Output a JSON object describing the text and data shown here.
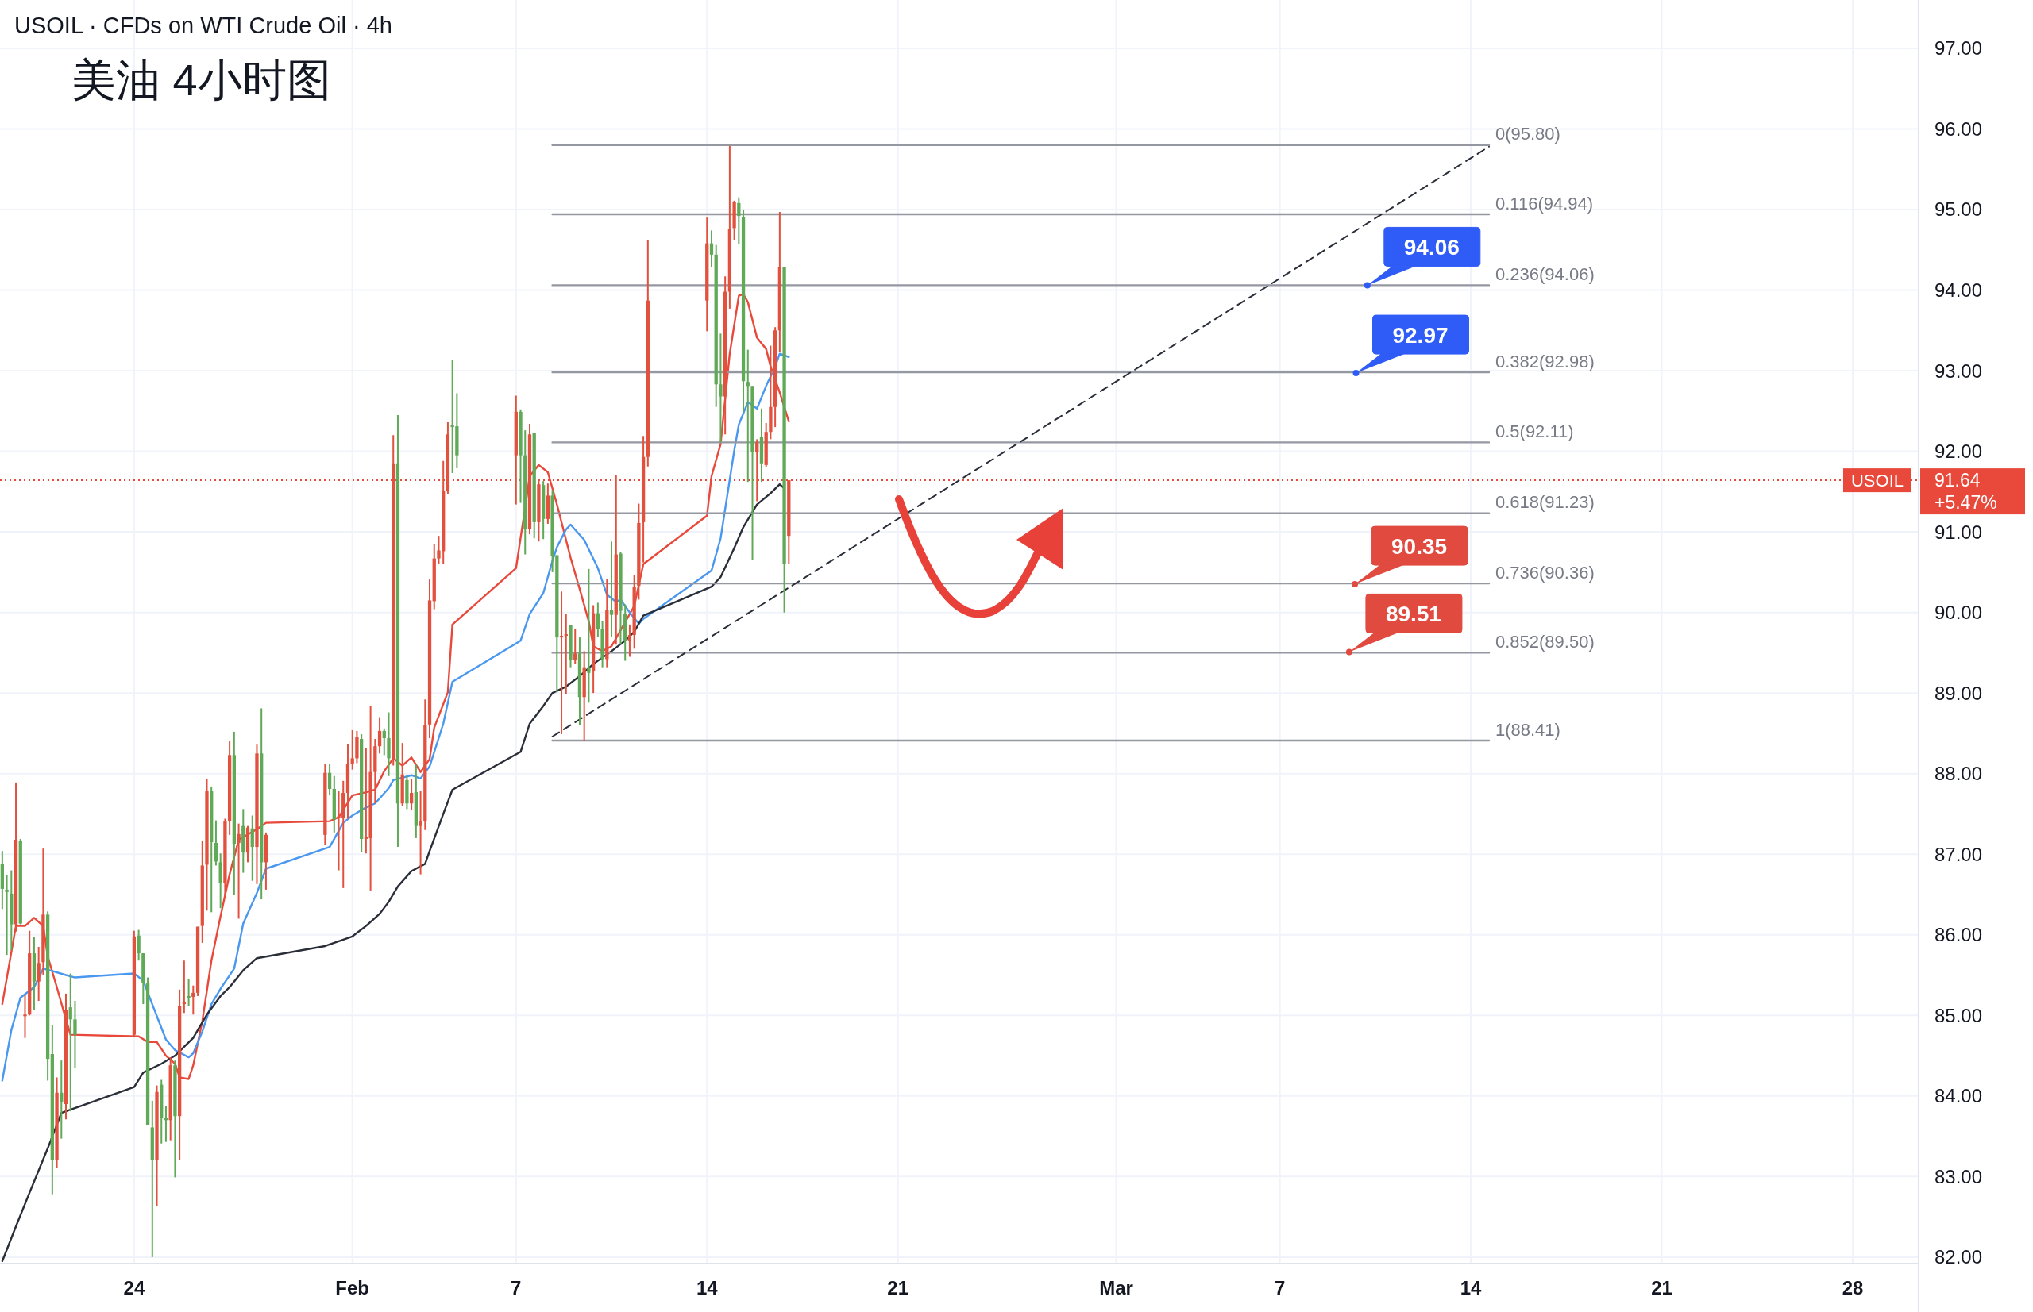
{
  "chart_data": {
    "type": "candlestick",
    "title": "USOIL · CFDs on WTI Crude Oil · 4h",
    "subtitle": "美油 4小时图",
    "xlim": [
      "--01-19T02:00",
      "--03-30T10:00"
    ],
    "ylim": [
      81.92,
      97.6
    ],
    "xticks": [
      {
        "value": "--01-24",
        "label": "24"
      },
      {
        "value": "--02-01",
        "label": "Feb"
      },
      {
        "value": "--02-07",
        "label": "7"
      },
      {
        "value": "--02-14",
        "label": "14"
      },
      {
        "value": "--02-21",
        "label": "21"
      },
      {
        "value": "--03-01",
        "label": "Mar"
      },
      {
        "value": "--03-07",
        "label": "7"
      },
      {
        "value": "--03-14",
        "label": "14"
      },
      {
        "value": "--03-21",
        "label": "21"
      },
      {
        "value": "--03-28",
        "label": "28"
      }
    ],
    "yticks": [
      {
        "value": 82,
        "label": "82.00"
      },
      {
        "value": 83,
        "label": "83.00"
      },
      {
        "value": 84,
        "label": "84.00"
      },
      {
        "value": 85,
        "label": "85.00"
      },
      {
        "value": 86,
        "label": "86.00"
      },
      {
        "value": 87,
        "label": "87.00"
      },
      {
        "value": 88,
        "label": "88.00"
      },
      {
        "value": 89,
        "label": "89.00"
      },
      {
        "value": 90,
        "label": "90.00"
      },
      {
        "value": 91,
        "label": "91.00"
      },
      {
        "value": 92,
        "label": "92.00"
      },
      {
        "value": 93,
        "label": "93.00"
      },
      {
        "value": 94,
        "label": "94.00"
      },
      {
        "value": 95,
        "label": "95.00"
      },
      {
        "value": 96,
        "label": "96.00"
      },
      {
        "value": 97,
        "label": "97.00"
      }
    ],
    "grid": true,
    "series": [
      {
        "type": "line",
        "color": "#e8493b",
        "x": [
          "--01-19T04:00",
          "--01-19T16:00",
          "--01-20T00:00",
          "--01-20T08:00",
          "--01-20T16:00",
          "--01-20T20:00",
          "--01-21T04:00",
          "--01-21T12:00",
          "--01-21T16:00",
          "--01-24T04:00",
          "--01-24T12:00",
          "--01-24T20:00",
          "--01-25T04:00",
          "--01-25T12:00",
          "--01-25T16:00",
          "--01-26T00:00",
          "--01-26T04:00",
          "--01-26T12:00",
          "--01-26T20:00",
          "--01-27T04:00",
          "--01-27T12:00",
          "--01-27T20:00",
          "--01-28T12:00",
          "--01-28T20:00",
          "--01-31T04:00",
          "--01-31T12:00",
          "--02-01T00:00",
          "--02-01T12:00",
          "--02-01T20:00",
          "--02-02T04:00",
          "--02-02T12:00",
          "--02-02T20:00",
          "--02-03T04:00",
          "--02-03T12:00",
          "--02-03T20:00",
          "--02-04T00:00",
          "--02-04T12:00",
          "--02-04T16:00",
          "--02-07T00:00",
          "--02-07T08:00",
          "--02-07T12:00",
          "--02-07T20:00",
          "--02-08T04:00",
          "--02-08T12:00",
          "--02-08T20:00",
          "--02-09T00:00",
          "--02-09T08:00",
          "--02-09T16:00",
          "--02-09T20:00",
          "--02-10T04:00",
          "--02-10T12:00",
          "--02-11T00:00",
          "--02-11T08:00",
          "--02-11T16:00",
          "--02-14T00:00",
          "--02-14T04:00",
          "--02-14T12:00",
          "--02-14T20:00",
          "--02-15T04:00",
          "--02-15T08:00",
          "--02-15T12:00",
          "--02-15T20:00",
          "--02-16T04:00",
          "--02-16T08:00",
          "--02-16T16:00",
          "--02-17T00:00"
        ],
        "values": [
          85.14,
          86.11,
          86.11,
          86.21,
          86.11,
          85.73,
          85.35,
          84.95,
          84.76,
          84.74,
          84.67,
          84.67,
          84.5,
          84.4,
          84.23,
          84.21,
          84.38,
          84.93,
          85.68,
          86.23,
          86.75,
          87.18,
          87.31,
          87.39,
          87.41,
          87.46,
          87.73,
          87.77,
          87.8,
          88.03,
          88.19,
          88.1,
          88.2,
          88.02,
          88.18,
          88.57,
          89.01,
          89.85,
          90.55,
          91.3,
          91.69,
          91.83,
          91.74,
          91.34,
          90.9,
          90.68,
          90.29,
          89.89,
          89.58,
          89.52,
          89.58,
          89.88,
          90.08,
          90.6,
          91.2,
          91.69,
          92.09,
          93.21,
          93.93,
          93.95,
          93.85,
          93.41,
          93.27,
          93.05,
          92.73,
          92.37
        ]
      },
      {
        "type": "line",
        "color": "#4a97f0",
        "x": [
          "--01-19T04:00",
          "--01-19T12:00",
          "--01-19T20:00",
          "--01-20T08:00",
          "--01-20T16:00",
          "--01-21T00:00",
          "--01-21T12:00",
          "--01-21T20:00",
          "--01-24T00:00",
          "--01-24T08:00",
          "--01-24T20:00",
          "--01-25T04:00",
          "--01-25T12:00",
          "--01-26T00:00",
          "--01-26T04:00",
          "--01-26T12:00",
          "--01-26T20:00",
          "--01-27T04:00",
          "--01-27T16:00",
          "--01-28T00:00",
          "--01-28T12:00",
          "--01-28T20:00",
          "--01-31T04:00",
          "--01-31T16:00",
          "--02-01T00:00",
          "--02-01T12:00",
          "--02-01T20:00",
          "--02-02T08:00",
          "--02-02T12:00",
          "--02-03T04:00",
          "--02-03T12:00",
          "--02-03T20:00",
          "--02-04T08:00",
          "--02-04T16:00",
          "--02-07T04:00",
          "--02-07T12:00",
          "--02-08T00:00",
          "--02-08T08:00",
          "--02-08T12:00",
          "--02-08T20:00",
          "--02-09T00:00",
          "--02-09T12:00",
          "--02-10T00:00",
          "--02-10T08:00",
          "--02-10T16:00",
          "--02-10T20:00",
          "--02-11T04:00",
          "--02-11T12:00",
          "--02-11T16:00",
          "--02-14T04:00",
          "--02-14T12:00",
          "--02-15T00:00",
          "--02-15T04:00",
          "--02-15T12:00",
          "--02-15T20:00",
          "--02-16T04:00",
          "--02-16T12:00",
          "--02-16T16:00",
          "--02-17T00:00"
        ],
        "values": [
          84.19,
          84.82,
          85.22,
          85.35,
          85.58,
          85.55,
          85.5,
          85.47,
          85.52,
          85.43,
          84.99,
          84.7,
          84.57,
          84.48,
          84.53,
          84.8,
          85.14,
          85.33,
          85.58,
          86.14,
          86.52,
          86.82,
          87.09,
          87.39,
          87.48,
          87.58,
          87.63,
          87.82,
          87.92,
          87.98,
          87.94,
          88.09,
          88.62,
          89.14,
          89.65,
          89.98,
          90.24,
          90.64,
          90.81,
          91.03,
          91.09,
          90.9,
          90.55,
          90.22,
          90.13,
          90.16,
          90.0,
          89.86,
          89.92,
          90.52,
          90.92,
          92.01,
          92.33,
          92.61,
          92.53,
          92.81,
          93.05,
          93.21,
          93.17
        ]
      },
      {
        "type": "line",
        "color": "#2a2e39",
        "x": [
          "--01-19T04:00",
          "--01-19T16:00",
          "--01-20T04:00",
          "--01-20T20:00",
          "--01-21T08:00",
          "--01-24T00:00",
          "--01-24T08:00",
          "--01-25T00:00",
          "--01-25T12:00",
          "--01-26T04:00",
          "--01-26T16:00",
          "--01-27T04:00",
          "--01-27T12:00",
          "--01-28T00:00",
          "--01-28T12:00",
          "--01-31T00:00",
          "--01-31T12:00",
          "--02-01T00:00",
          "--02-01T12:00",
          "--02-02T00:00",
          "--02-02T08:00",
          "--02-02T16:00",
          "--02-03T04:00",
          "--02-03T16:00",
          "--02-03T20:00",
          "--02-04T08:00",
          "--02-04T16:00",
          "--02-07T04:00",
          "--02-07T12:00",
          "--02-08T00:00",
          "--02-08T08:00",
          "--02-08T20:00",
          "--02-09T08:00",
          "--02-09T20:00",
          "--02-10T12:00",
          "--02-11T00:00",
          "--02-11T08:00",
          "--02-11T16:00",
          "--02-14T04:00",
          "--02-14T12:00",
          "--02-15T00:00",
          "--02-15T08:00",
          "--02-15T20:00",
          "--02-16T08:00",
          "--02-16T16:00",
          "--02-16T20:00"
        ],
        "values": [
          81.95,
          82.38,
          82.8,
          83.35,
          83.79,
          84.11,
          84.29,
          84.4,
          84.5,
          84.72,
          85.01,
          85.24,
          85.35,
          85.56,
          85.71,
          85.86,
          85.92,
          85.98,
          86.11,
          86.26,
          86.41,
          86.6,
          86.79,
          86.88,
          87.04,
          87.5,
          87.8,
          88.27,
          88.62,
          88.84,
          89.0,
          89.08,
          89.21,
          89.36,
          89.52,
          89.65,
          89.76,
          89.96,
          90.32,
          90.44,
          90.8,
          91.06,
          91.34,
          91.48,
          91.59,
          91.54
        ]
      },
      {
        "x": [
          "--01-19T04:00",
          "--01-19T08:00",
          "--01-19T12:00",
          "--01-19T16:00",
          "--01-19T20:00",
          "--01-20T00:00",
          "--01-20T04:00",
          "--01-20T08:00",
          "--01-20T12:00",
          "--01-20T16:00",
          "--01-20T20:00",
          "--01-21T00:00",
          "--01-21T04:00",
          "--01-21T08:00",
          "--01-21T12:00",
          "--01-21T16:00",
          "--01-21T20:00",
          "--01-24T00:00",
          "--01-24T04:00",
          "--01-24T08:00",
          "--01-24T12:00",
          "--01-24T16:00",
          "--01-24T20:00",
          "--01-25T00:00",
          "--01-25T04:00",
          "--01-25T08:00",
          "--01-25T12:00",
          "--01-25T16:00",
          "--01-25T20:00",
          "--01-26T00:00",
          "--01-26T04:00",
          "--01-26T08:00",
          "--01-26T12:00",
          "--01-26T16:00",
          "--01-26T20:00",
          "--01-27T00:00",
          "--01-27T04:00",
          "--01-27T08:00",
          "--01-27T12:00",
          "--01-27T16:00",
          "--01-27T20:00",
          "--01-28T00:00",
          "--01-28T04:00",
          "--01-28T08:00",
          "--01-28T12:00",
          "--01-28T16:00",
          "--01-28T20:00",
          "--01-31T00:00",
          "--01-31T04:00",
          "--01-31T08:00",
          "--01-31T12:00",
          "--01-31T16:00",
          "--01-31T20:00",
          "--02-01T00:00",
          "--02-01T04:00",
          "--02-01T08:00",
          "--02-01T12:00",
          "--02-01T16:00",
          "--02-01T20:00",
          "--02-02T00:00",
          "--02-02T04:00",
          "--02-02T08:00",
          "--02-02T12:00",
          "--02-02T16:00",
          "--02-02T20:00",
          "--02-03T00:00",
          "--02-03T04:00",
          "--02-03T08:00",
          "--02-03T12:00",
          "--02-03T16:00",
          "--02-03T20:00",
          "--02-04T00:00",
          "--02-04T04:00",
          "--02-04T08:00",
          "--02-04T12:00",
          "--02-04T16:00",
          "--02-04T20:00",
          "--02-07T00:00",
          "--02-07T04:00",
          "--02-07T08:00",
          "--02-07T12:00",
          "--02-07T16:00",
          "--02-07T20:00",
          "--02-08T00:00",
          "--02-08T04:00",
          "--02-08T08:00",
          "--02-08T12:00",
          "--02-08T16:00",
          "--02-08T20:00",
          "--02-09T00:00",
          "--02-09T04:00",
          "--02-09T08:00",
          "--02-09T12:00",
          "--02-09T16:00",
          "--02-09T20:00",
          "--02-10T00:00",
          "--02-10T04:00",
          "--02-10T08:00",
          "--02-10T12:00",
          "--02-10T16:00",
          "--02-10T20:00",
          "--02-11T00:00",
          "--02-11T04:00",
          "--02-11T08:00",
          "--02-11T12:00",
          "--02-11T16:00",
          "--02-11T20:00",
          "--02-14T00:00",
          "--02-14T04:00",
          "--02-14T08:00",
          "--02-14T12:00",
          "--02-14T16:00",
          "--02-14T20:00",
          "--02-15T00:00",
          "--02-15T04:00",
          "--02-15T08:00",
          "--02-15T12:00",
          "--02-15T16:00",
          "--02-15T20:00",
          "--02-16T00:00",
          "--02-16T04:00",
          "--02-16T08:00",
          "--02-16T12:00",
          "--02-16T16:00",
          "--02-16T20:00",
          "--02-17T00:00"
        ],
        "ohlc": [
          [
            86.88,
            87.04,
            86.32,
            86.57
          ],
          [
            86.56,
            86.74,
            85.75,
            86.53
          ],
          [
            86.51,
            86.8,
            85.81,
            86.13
          ],
          [
            86.13,
            87.89,
            86.04,
            87.18
          ],
          [
            87.17,
            87.19,
            86.13,
            86.14
          ],
          [
            84.99,
            85.25,
            84.72,
            85.01
          ],
          [
            85.01,
            86.05,
            85.0,
            85.77
          ],
          [
            85.77,
            85.97,
            85.07,
            85.42
          ],
          [
            85.42,
            85.85,
            85.18,
            85.65
          ],
          [
            85.66,
            87.07,
            85.5,
            86.25
          ],
          [
            86.25,
            86.29,
            84.19,
            84.46
          ],
          [
            84.52,
            84.88,
            82.78,
            83.21
          ],
          [
            83.21,
            84.23,
            83.11,
            84.04
          ],
          [
            84.04,
            84.44,
            83.47,
            83.92
          ],
          [
            83.9,
            85.27,
            83.71,
            85.07
          ],
          [
            85.1,
            85.52,
            83.81,
            84.95
          ],
          [
            84.95,
            85.18,
            84.35,
            84.76
          ],
          [
            84.76,
            86.05,
            84.74,
            85.98
          ],
          [
            85.99,
            86.06,
            85.68,
            85.77
          ],
          [
            85.77,
            85.77,
            85.14,
            85.4
          ],
          [
            85.4,
            85.47,
            83.64,
            83.64
          ],
          [
            83.61,
            83.94,
            82.0,
            83.21
          ],
          [
            83.21,
            84.13,
            82.63,
            84.05
          ],
          [
            84.14,
            84.2,
            83.41,
            83.73
          ],
          [
            83.73,
            83.87,
            83.43,
            83.7
          ],
          [
            83.7,
            84.48,
            83.45,
            84.38
          ],
          [
            84.38,
            84.44,
            82.99,
            83.75
          ],
          [
            83.75,
            85.32,
            83.21,
            85.12
          ],
          [
            85.14,
            85.68,
            85.03,
            85.17
          ],
          [
            85.24,
            85.45,
            85.12,
            85.22
          ],
          [
            85.23,
            85.37,
            85.01,
            85.28
          ],
          [
            85.28,
            86.1,
            85.24,
            86.1
          ],
          [
            86.11,
            87.17,
            85.9,
            86.86
          ],
          [
            86.87,
            87.93,
            86.3,
            87.78
          ],
          [
            87.78,
            87.84,
            86.28,
            87.15
          ],
          [
            87.14,
            87.42,
            86.86,
            86.91
          ],
          [
            86.9,
            87.01,
            86.33,
            86.64
          ],
          [
            86.64,
            87.44,
            86.48,
            87.41
          ],
          [
            87.41,
            88.41,
            87.24,
            88.23
          ],
          [
            88.23,
            88.52,
            86.5,
            87.13
          ],
          [
            87.14,
            87.38,
            86.2,
            87.25
          ],
          [
            87.35,
            87.56,
            86.77,
            87.02
          ],
          [
            87.02,
            87.35,
            86.9,
            87.33
          ],
          [
            87.32,
            87.48,
            86.67,
            87.09
          ],
          [
            87.09,
            88.36,
            86.63,
            88.25
          ],
          [
            88.25,
            88.81,
            86.44,
            86.9
          ],
          [
            86.9,
            87.27,
            86.56,
            87.24
          ],
          [
            87.24,
            88.12,
            87.12,
            88.01
          ],
          [
            88.01,
            88.12,
            87.73,
            87.81
          ],
          [
            87.81,
            87.97,
            87.27,
            87.43
          ],
          [
            87.45,
            87.78,
            86.8,
            87.47
          ],
          [
            87.45,
            87.91,
            86.58,
            87.76
          ],
          [
            87.76,
            88.37,
            87.44,
            88.12
          ],
          [
            88.12,
            88.54,
            88.05,
            88.19
          ],
          [
            88.19,
            88.53,
            88.13,
            88.45
          ],
          [
            88.43,
            88.49,
            87.03,
            87.19
          ],
          [
            87.19,
            88.32,
            87.01,
            87.21
          ],
          [
            87.2,
            88.84,
            86.55,
            88.02
          ],
          [
            88.02,
            88.43,
            87.63,
            88.34
          ],
          [
            88.34,
            88.7,
            88.25,
            88.53
          ],
          [
            88.53,
            88.56,
            88.23,
            88.44
          ],
          [
            88.44,
            88.76,
            87.97,
            88.19
          ],
          [
            88.19,
            92.2,
            88.1,
            91.85
          ],
          [
            91.85,
            92.45,
            87.09,
            87.63
          ],
          [
            87.63,
            88.38,
            87.6,
            87.99
          ],
          [
            87.92,
            87.97,
            87.56,
            87.63
          ],
          [
            87.63,
            87.93,
            87.55,
            87.76
          ],
          [
            87.77,
            88.11,
            87.2,
            87.35
          ],
          [
            87.35,
            87.78,
            86.75,
            87.41
          ],
          [
            87.41,
            88.92,
            87.3,
            88.6
          ],
          [
            88.61,
            90.41,
            88.44,
            90.15
          ],
          [
            90.14,
            90.85,
            90.04,
            90.67
          ],
          [
            90.67,
            90.95,
            90.6,
            90.77
          ],
          [
            90.76,
            91.88,
            90.6,
            91.51
          ],
          [
            91.51,
            92.36,
            91.47,
            92.21
          ],
          [
            92.33,
            93.13,
            91.73,
            92.3
          ],
          [
            92.31,
            92.72,
            91.79,
            91.95
          ],
          [
            91.95,
            92.69,
            91.34,
            92.49
          ],
          [
            92.49,
            92.52,
            91.36,
            91.95
          ],
          [
            91.95,
            92.26,
            90.72,
            91.03
          ],
          [
            91.03,
            92.34,
            90.97,
            92.21
          ],
          [
            92.23,
            92.23,
            90.92,
            91.12
          ],
          [
            91.12,
            91.65,
            90.88,
            91.59
          ],
          [
            91.58,
            91.63,
            90.91,
            91.16
          ],
          [
            91.16,
            91.6,
            91.1,
            91.45
          ],
          [
            91.45,
            91.52,
            90.5,
            90.7
          ],
          [
            90.71,
            90.71,
            89.01,
            89.69
          ],
          [
            89.69,
            90.26,
            88.49,
            89.71
          ],
          [
            89.71,
            89.98,
            88.99,
            89.73
          ],
          [
            89.84,
            89.84,
            89.32,
            89.41
          ],
          [
            89.41,
            89.8,
            89.36,
            89.49
          ],
          [
            89.49,
            89.69,
            88.6,
            88.95
          ],
          [
            88.95,
            89.52,
            88.4,
            89.32
          ],
          [
            89.32,
            90.54,
            88.88,
            89.25
          ],
          [
            89.27,
            90.09,
            89.0,
            89.99
          ],
          [
            89.99,
            90.12,
            89.7,
            89.79
          ],
          [
            89.79,
            89.89,
            89.32,
            89.42
          ],
          [
            89.42,
            90.42,
            89.32,
            90.03
          ],
          [
            90.03,
            90.88,
            89.7,
            89.97
          ],
          [
            89.97,
            91.71,
            89.6,
            90.72
          ],
          [
            90.73,
            90.75,
            89.6,
            90.02
          ],
          [
            89.98,
            90.1,
            89.4,
            89.65
          ],
          [
            89.65,
            89.85,
            89.45,
            89.72
          ],
          [
            89.72,
            90.46,
            89.55,
            90.32
          ],
          [
            90.33,
            91.35,
            90.16,
            91.11
          ],
          [
            91.12,
            92.19,
            90.62,
            91.93
          ],
          [
            91.93,
            94.62,
            91.81,
            93.87
          ],
          [
            93.87,
            94.9,
            93.49,
            94.58
          ],
          [
            94.58,
            94.74,
            94.29,
            94.44
          ],
          [
            94.44,
            94.56,
            92.55,
            92.83
          ],
          [
            92.83,
            93.46,
            92.11,
            92.68
          ],
          [
            92.68,
            94.17,
            92.21,
            93.98
          ],
          [
            93.98,
            95.79,
            93.77,
            94.76
          ],
          [
            94.77,
            95.11,
            94.62,
            95.09
          ],
          [
            95.08,
            95.15,
            94.57,
            94.92
          ],
          [
            94.91,
            95.0,
            92.49,
            92.87
          ],
          [
            92.86,
            93.26,
            91.62,
            92.81
          ],
          [
            92.81,
            92.81,
            90.65,
            91.99
          ],
          [
            91.99,
            92.15,
            91.38,
            92.11
          ],
          [
            92.18,
            92.53,
            91.62,
            91.85
          ],
          [
            91.83,
            92.35,
            91.81,
            92.24
          ],
          [
            92.24,
            93.31,
            92.15,
            92.55
          ],
          [
            92.55,
            93.54,
            92.3,
            93.5
          ],
          [
            93.5,
            94.97,
            93.23,
            94.29
          ],
          [
            94.29,
            94.29,
            90.0,
            90.6
          ],
          [
            90.95,
            91.64,
            90.6,
            91.64
          ]
        ],
        "colors": [
          "#5fa957",
          "#5fa957",
          "#5fa957",
          "#e2503e",
          "#5fa957",
          "#e2503e",
          "#e2503e",
          "#5fa957",
          "#e2503e",
          "#e2503e",
          "#5fa957",
          "#5fa957",
          "#e2503e",
          "#5fa957",
          "#e2503e",
          "#5fa957",
          "#5fa957",
          "#e2503e",
          "#5fa957",
          "#5fa957",
          "#5fa957",
          "#5fa957",
          "#e2503e",
          "#5fa957",
          "#5fa957",
          "#e2503e",
          "#5fa957",
          "#e2503e",
          "#e2503e",
          "#5fa957",
          "#e2503e",
          "#e2503e",
          "#e2503e",
          "#e2503e",
          "#5fa957",
          "#5fa957",
          "#5fa957",
          "#e2503e",
          "#e2503e",
          "#5fa957",
          "#e2503e",
          "#5fa957",
          "#e2503e",
          "#5fa957",
          "#e2503e",
          "#5fa957",
          "#e2503e",
          "#e2503e",
          "#5fa957",
          "#5fa957",
          "#e2503e",
          "#e2503e",
          "#e2503e",
          "#e2503e",
          "#e2503e",
          "#5fa957",
          "#e2503e",
          "#e2503e",
          "#e2503e",
          "#e2503e",
          "#5fa957",
          "#5fa957",
          "#e2503e",
          "#5fa957",
          "#e2503e",
          "#5fa957",
          "#e2503e",
          "#5fa957",
          "#e2503e",
          "#e2503e",
          "#e2503e",
          "#e2503e",
          "#e2503e",
          "#e2503e",
          "#e2503e",
          "#5fa957",
          "#5fa957",
          "#e2503e",
          "#5fa957",
          "#5fa957",
          "#e2503e",
          "#5fa957",
          "#e2503e",
          "#5fa957",
          "#e2503e",
          "#5fa957",
          "#5fa957",
          "#e2503e",
          "#e2503e",
          "#5fa957",
          "#e2503e",
          "#5fa957",
          "#e2503e",
          "#5fa957",
          "#e2503e",
          "#5fa957",
          "#5fa957",
          "#e2503e",
          "#5fa957",
          "#e2503e",
          "#5fa957",
          "#5fa957",
          "#e2503e",
          "#e2503e",
          "#e2503e",
          "#e2503e",
          "#e2503e",
          "#e2503e",
          "#5fa957",
          "#5fa957",
          "#5fa957",
          "#e2503e",
          "#e2503e",
          "#e2503e",
          "#5fa957",
          "#5fa957",
          "#5fa957",
          "#5fa957",
          "#e2503e",
          "#5fa957",
          "#e2503e",
          "#e2503e",
          "#e2503e",
          "#e2503e",
          "#5fa957",
          "#e2503e"
        ]
      },
      {
        "type": "line",
        "color": "#9598a1",
        "x": [
          "--02-08T08:00",
          "--03-14T16:00"
        ],
        "values": [
          95.8,
          95.8
        ]
      },
      {
        "type": "line",
        "color": "#9598a1",
        "x": [
          "--02-08T08:00",
          "--03-14T16:00"
        ],
        "values": [
          94.94,
          94.94
        ]
      },
      {
        "type": "line",
        "color": "#9598a1",
        "x": [
          "--02-08T08:00",
          "--03-14T16:00"
        ],
        "values": [
          94.06,
          94.06
        ]
      },
      {
        "type": "line",
        "color": "#9598a1",
        "x": [
          "--02-08T08:00",
          "--03-14T16:00"
        ],
        "values": [
          92.98,
          92.98
        ]
      },
      {
        "type": "line",
        "color": "#9598a1",
        "x": [
          "--02-08T08:00",
          "--03-14T16:00"
        ],
        "values": [
          92.11,
          92.11
        ]
      },
      {
        "type": "line",
        "color": "#9598a1",
        "x": [
          "--02-08T08:00",
          "--03-14T16:00"
        ],
        "values": [
          91.23,
          91.23
        ]
      },
      {
        "type": "line",
        "color": "#9598a1",
        "x": [
          "--02-08T08:00",
          "--03-14T16:00"
        ],
        "values": [
          90.36,
          90.36
        ]
      },
      {
        "type": "line",
        "color": "#9598a1",
        "x": [
          "--02-08T08:00",
          "--03-14T16:00"
        ],
        "values": [
          89.5,
          89.5
        ]
      },
      {
        "type": "line",
        "color": "#9598a1",
        "x": [
          "--02-08T08:00",
          "--03-14T16:00"
        ],
        "values": [
          88.41,
          88.41
        ]
      },
      {
        "type": "line",
        "color": "#2a2e39",
        "line_style": "dashed",
        "x": [
          "--02-08T08:00",
          "--03-14T16:00"
        ],
        "values": [
          88.46,
          95.78
        ]
      },
      {
        "type": "scatter",
        "x": [
          "--03-10T05:00",
          "--03-09T19:00",
          "--03-09T18:00",
          "--03-09T13:00"
        ],
        "values": [
          94.06,
          92.97,
          90.35,
          89.51
        ],
        "colors": [
          "#2f5cf6",
          "#2f5cf6",
          "#e04a3f",
          "#e04a3f"
        ],
        "value_labels": [
          "94.06",
          "92.97",
          "90.35",
          "89.51"
        ]
      }
    ],
    "ref_lines": [
      {
        "axis": "y",
        "value": 91.64,
        "label": "USOIL",
        "color": "#e8493b",
        "line_style": "dotted"
      }
    ],
    "annotations": [
      {
        "text": "0(95.80)",
        "x": "--03-14T16:00",
        "y": 95.8
      },
      {
        "text": "0.116(94.94)",
        "x": "--03-14T16:00",
        "y": 94.94
      },
      {
        "text": "0.236(94.06)",
        "x": "--03-14T16:00",
        "y": 94.06
      },
      {
        "text": "0.382(92.98)",
        "x": "--03-14T16:00",
        "y": 92.98
      },
      {
        "text": "0.5(92.11)",
        "x": "--03-14T16:00",
        "y": 92.11
      },
      {
        "text": "0.618(91.23)",
        "x": "--03-14T16:00",
        "y": 91.23
      },
      {
        "text": "0.736(90.36)",
        "x": "--03-14T16:00",
        "y": 90.36
      },
      {
        "text": "0.852(89.50)",
        "x": "--03-14T16:00",
        "y": 89.5
      },
      {
        "text": "1(88.41)",
        "x": "--03-14T16:00",
        "y": 88.41
      },
      "91.64",
      "+5.47%"
    ]
  }
}
